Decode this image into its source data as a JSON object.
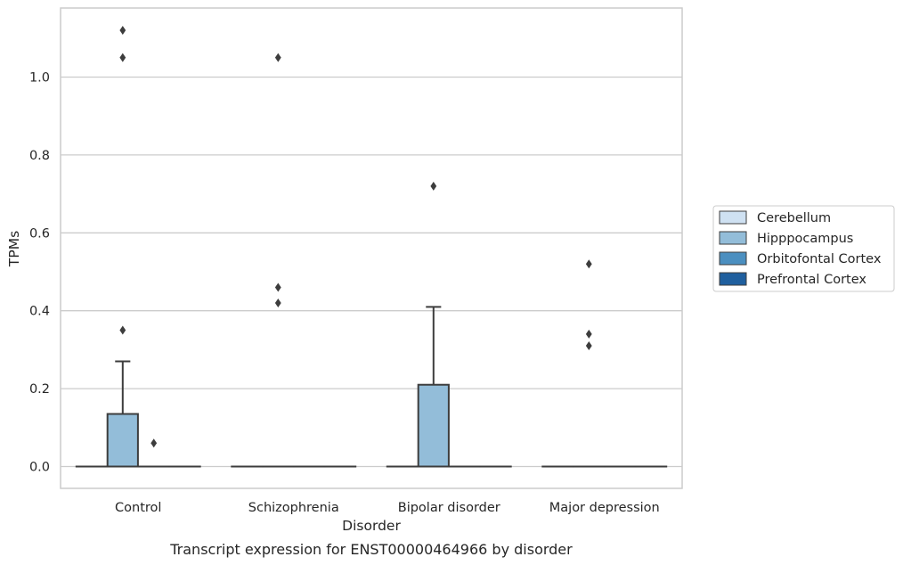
{
  "caption": "Transcript expression for ENST00000464966 by disorder",
  "chart_data": {
    "type": "box",
    "xlabel": "Disorder",
    "ylabel": "TPMs",
    "ylim": [
      -0.055,
      1.18
    ],
    "yticks": [
      "0.0",
      "0.2",
      "0.4",
      "0.6",
      "0.8",
      "1.0"
    ],
    "grid": "horizontal",
    "legend_position": "right",
    "categories": [
      "Control",
      "Schizophrenia",
      "Bipolar disorder",
      "Major depression"
    ],
    "series": [
      {
        "name": "Cerebellum",
        "color": "#cfe1f2",
        "boxes": [
          {
            "q1": 0,
            "median": 0,
            "q3": 0,
            "whisker_low": 0,
            "whisker_high": 0,
            "outliers": []
          },
          {
            "q1": 0,
            "median": 0,
            "q3": 0,
            "whisker_low": 0,
            "whisker_high": 0,
            "outliers": []
          },
          {
            "q1": 0,
            "median": 0,
            "q3": 0,
            "whisker_low": 0,
            "whisker_high": 0,
            "outliers": []
          },
          {
            "q1": 0,
            "median": 0,
            "q3": 0,
            "whisker_low": 0,
            "whisker_high": 0,
            "outliers": []
          }
        ]
      },
      {
        "name": "Hipppocampus",
        "color": "#93bdd9",
        "boxes": [
          {
            "q1": 0,
            "median": 0,
            "q3": 0.135,
            "whisker_low": 0,
            "whisker_high": 0.27,
            "outliers": [
              0.35,
              1.05,
              1.12
            ]
          },
          {
            "q1": 0,
            "median": 0,
            "q3": 0,
            "whisker_low": 0,
            "whisker_high": 0,
            "outliers": [
              0.42,
              0.46,
              1.05
            ]
          },
          {
            "q1": 0,
            "median": 0,
            "q3": 0.21,
            "whisker_low": 0,
            "whisker_high": 0.41,
            "outliers": [
              0.72
            ]
          },
          {
            "q1": 0,
            "median": 0,
            "q3": 0,
            "whisker_low": 0,
            "whisker_high": 0,
            "outliers": [
              0.31,
              0.34,
              0.52
            ]
          }
        ]
      },
      {
        "name": "Orbitofontal Cortex",
        "color": "#4b8fc0",
        "boxes": [
          {
            "q1": 0,
            "median": 0,
            "q3": 0,
            "whisker_low": 0,
            "whisker_high": 0,
            "outliers": [
              0.06
            ]
          },
          {
            "q1": 0,
            "median": 0,
            "q3": 0,
            "whisker_low": 0,
            "whisker_high": 0,
            "outliers": []
          },
          {
            "q1": 0,
            "median": 0,
            "q3": 0,
            "whisker_low": 0,
            "whisker_high": 0,
            "outliers": []
          },
          {
            "q1": 0,
            "median": 0,
            "q3": 0,
            "whisker_low": 0,
            "whisker_high": 0,
            "outliers": []
          }
        ]
      },
      {
        "name": "Prefrontal Cortex",
        "color": "#1f5f9e",
        "boxes": [
          {
            "q1": 0,
            "median": 0,
            "q3": 0,
            "whisker_low": 0,
            "whisker_high": 0,
            "outliers": []
          },
          {
            "q1": 0,
            "median": 0,
            "q3": 0,
            "whisker_low": 0,
            "whisker_high": 0,
            "outliers": []
          },
          {
            "q1": 0,
            "median": 0,
            "q3": 0,
            "whisker_low": 0,
            "whisker_high": 0,
            "outliers": []
          },
          {
            "q1": 0,
            "median": 0,
            "q3": 0,
            "whisker_low": 0,
            "whisker_high": 0,
            "outliers": []
          }
        ]
      }
    ]
  }
}
